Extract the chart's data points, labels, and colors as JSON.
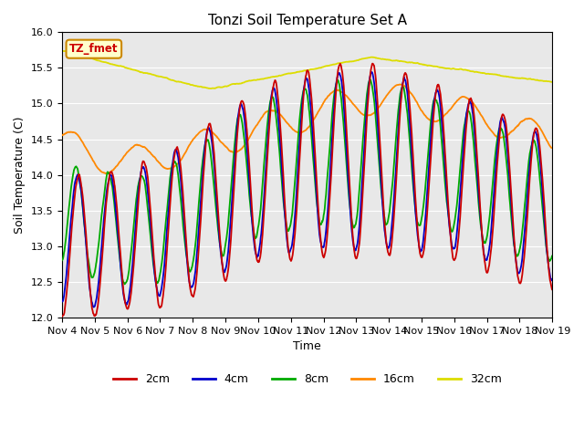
{
  "title": "Tonzi Soil Temperature Set A",
  "xlabel": "Time",
  "ylabel": "Soil Temperature (C)",
  "ylim": [
    12.0,
    16.0
  ],
  "yticks": [
    12.0,
    12.5,
    13.0,
    13.5,
    14.0,
    14.5,
    15.0,
    15.5,
    16.0
  ],
  "xtick_labels": [
    "Nov 4",
    "Nov 5",
    "Nov 6",
    "Nov 7",
    "Nov 8",
    "Nov 9",
    "Nov 10",
    "Nov 11",
    "Nov 12",
    "Nov 13",
    "Nov 14",
    "Nov 15",
    "Nov 16",
    "Nov 17",
    "Nov 18",
    "Nov 19"
  ],
  "line_colors": {
    "2cm": "#cc0000",
    "4cm": "#0000cc",
    "8cm": "#00aa00",
    "16cm": "#ff8800",
    "32cm": "#dddd00"
  },
  "annotation_text": "TZ_fmet",
  "annotation_bg": "#ffffcc",
  "annotation_border": "#cc8800",
  "annotation_fg": "#cc0000",
  "plot_bg": "#e8e8e8",
  "fig_bg": "#ffffff",
  "days": 15,
  "title_fontsize": 11,
  "label_fontsize": 9,
  "tick_fontsize": 8
}
